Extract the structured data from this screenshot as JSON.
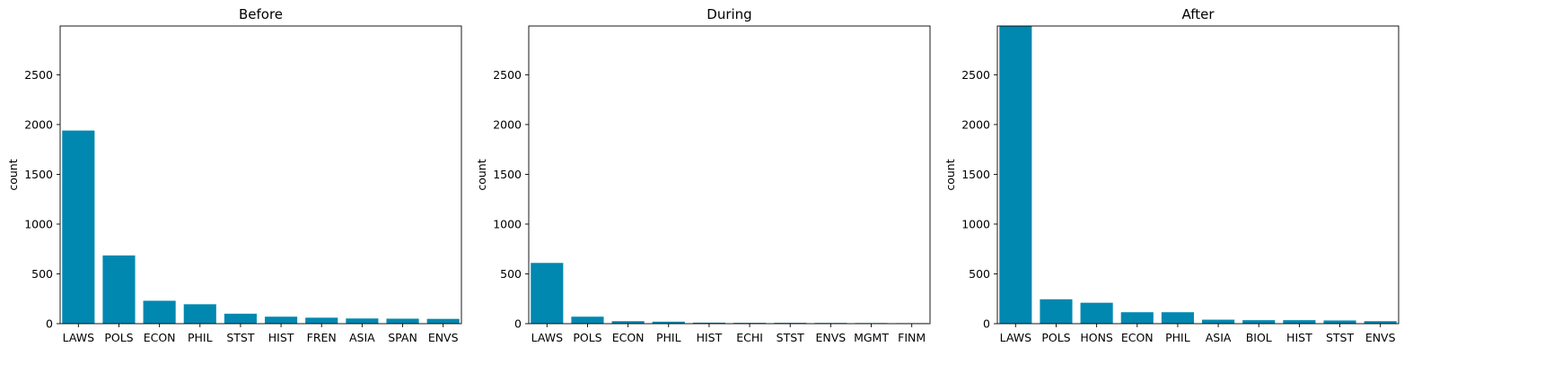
{
  "chart_data": [
    {
      "type": "bar",
      "title": "Before",
      "xlabel": "",
      "ylabel": "count",
      "ylim": [
        0,
        2990
      ],
      "yticks": [
        0,
        500,
        1000,
        1500,
        2000,
        2500
      ],
      "categories": [
        "LAWS",
        "POLS",
        "ECON",
        "PHIL",
        "STST",
        "HIST",
        "FREN",
        "ASIA",
        "SPAN",
        "ENVS"
      ],
      "values": [
        1940,
        685,
        230,
        195,
        100,
        70,
        60,
        52,
        50,
        48
      ],
      "color": "#0088b0"
    },
    {
      "type": "bar",
      "title": "During",
      "xlabel": "",
      "ylabel": "count",
      "ylim": [
        0,
        2990
      ],
      "yticks": [
        0,
        500,
        1000,
        1500,
        2000,
        2500
      ],
      "categories": [
        "LAWS",
        "POLS",
        "ECON",
        "PHIL",
        "HIST",
        "ECHI",
        "STST",
        "ENVS",
        "MGMT",
        "FINM"
      ],
      "values": [
        610,
        70,
        25,
        20,
        10,
        8,
        8,
        7,
        6,
        5
      ],
      "color": "#0088b0"
    },
    {
      "type": "bar",
      "title": "After",
      "xlabel": "",
      "ylabel": "count",
      "ylim": [
        0,
        2990
      ],
      "yticks": [
        0,
        500,
        1000,
        1500,
        2000,
        2500
      ],
      "categories": [
        "LAWS",
        "POLS",
        "HONS",
        "ECON",
        "PHIL",
        "ASIA",
        "BIOL",
        "HIST",
        "STST",
        "ENVS"
      ],
      "values": [
        2990,
        245,
        210,
        115,
        115,
        40,
        35,
        35,
        32,
        25
      ],
      "color": "#0088b0"
    }
  ]
}
